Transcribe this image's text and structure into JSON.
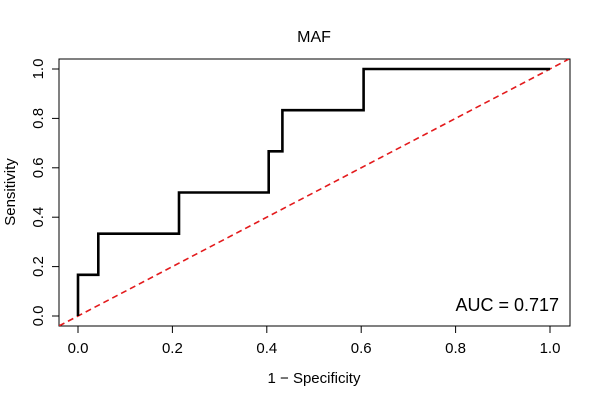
{
  "chart_data": {
    "type": "line",
    "title": "MAF",
    "xlabel": "1 − Specificity",
    "ylabel": "Sensitivity",
    "xlim": [
      0,
      1
    ],
    "ylim": [
      0,
      1
    ],
    "xticks": [
      "0.0",
      "0.2",
      "0.4",
      "0.6",
      "0.8",
      "1.0"
    ],
    "yticks": [
      "0.0",
      "0.2",
      "0.4",
      "0.6",
      "0.8",
      "1.0"
    ],
    "grid": false,
    "annotation": "AUC = 0.717",
    "series": [
      {
        "color": "#000000",
        "style": "solid-step",
        "x": [
          0.0,
          0.0,
          0.043,
          0.043,
          0.214,
          0.214,
          0.404,
          0.404,
          0.433,
          0.433,
          0.605,
          0.605,
          1.0
        ],
        "y": [
          0.0,
          0.167,
          0.167,
          0.333,
          0.333,
          0.5,
          0.5,
          0.667,
          0.667,
          0.833,
          0.833,
          1.0,
          1.0
        ]
      },
      {
        "color": "#e31a1c",
        "style": "dashed",
        "x": [
          0,
          1
        ],
        "y": [
          0,
          1
        ]
      }
    ]
  }
}
